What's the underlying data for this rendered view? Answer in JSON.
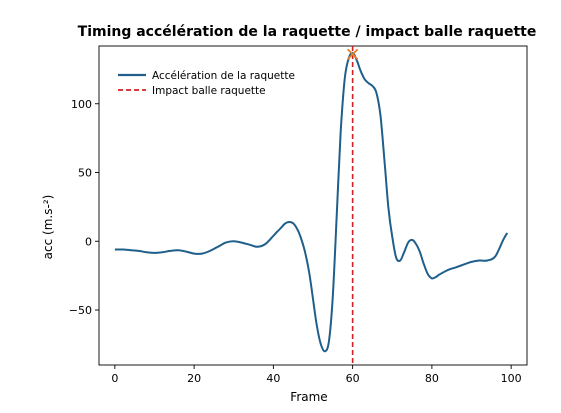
{
  "chart_data": {
    "type": "line",
    "title": "Timing accélération de la raquette / impact balle raquette",
    "xlabel": "Frame",
    "ylabel": "acc (m.s-²)",
    "xlim": [
      -4,
      104
    ],
    "ylim": [
      -90,
      142
    ],
    "xticks": [
      0,
      20,
      40,
      60,
      80,
      100
    ],
    "yticks": [
      -50,
      0,
      50,
      100
    ],
    "x_tick_labels": [
      "0",
      "20",
      "40",
      "60",
      "80",
      "100"
    ],
    "y_tick_labels": [
      "−50",
      "0",
      "50",
      "100"
    ],
    "grid": false,
    "legend_position": "top-left",
    "series": [
      {
        "name": "Accélération de la raquette",
        "style": "solid",
        "color": "#1f5f8b",
        "x": [
          0,
          2,
          4,
          6,
          8,
          10,
          12,
          14,
          16,
          18,
          20,
          22,
          24,
          26,
          28,
          30,
          32,
          34,
          36,
          38,
          40,
          41,
          42,
          43,
          44,
          45,
          46,
          47,
          48,
          49,
          50,
          51,
          52,
          53,
          54,
          55,
          56,
          57,
          58,
          59,
          60,
          61,
          62,
          63,
          64,
          65,
          66,
          67,
          68,
          69,
          70,
          71,
          72,
          73,
          74,
          75,
          76,
          77,
          78,
          79,
          80,
          81,
          82,
          84,
          86,
          88,
          90,
          92,
          94,
          96,
          98,
          99
        ],
        "y": [
          -6,
          -6,
          -6.5,
          -7,
          -8,
          -8.5,
          -8,
          -7,
          -6.5,
          -7.5,
          -9,
          -9,
          -7,
          -4,
          -1,
          0,
          -1,
          -2.5,
          -4,
          -2,
          4,
          7,
          10,
          13,
          14,
          13,
          9,
          2,
          -8,
          -22,
          -42,
          -62,
          -75,
          -80,
          -73,
          -40,
          20,
          80,
          118,
          133,
          137,
          132,
          124,
          118,
          115,
          113,
          108,
          92,
          60,
          25,
          3,
          -12,
          -14,
          -8,
          -1,
          1,
          -2,
          -8,
          -17,
          -24,
          -27,
          -26,
          -24,
          -21,
          -19,
          -17,
          -15,
          -14,
          -14,
          -11,
          1,
          6
        ]
      },
      {
        "name": "Impact balle raquette",
        "style": "dashed",
        "color": "#d42020",
        "x_value": 60
      }
    ],
    "annotations": [
      {
        "type": "marker",
        "symbol": "x",
        "x": 60,
        "y": 136,
        "color": "#e8822a"
      }
    ]
  }
}
